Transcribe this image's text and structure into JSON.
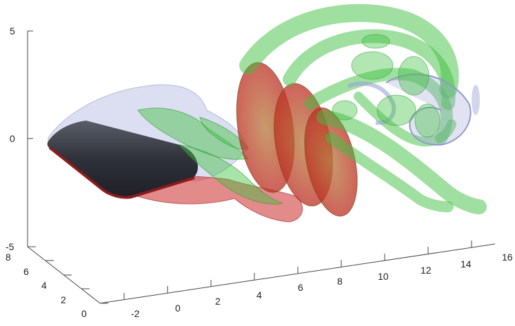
{
  "scene": {
    "description_type": "3d-vortex-isosurface-render",
    "background_color": "#ffffff",
    "colors": {
      "body": "#3b3e47",
      "red_isosurface": "#cc2a2a",
      "green_isosurface": "#3fc03f",
      "blue_isosurface": "#9aa3d6",
      "axis": "#444444"
    }
  },
  "axes": {
    "z": {
      "ticks": [
        "5",
        "0",
        "-5"
      ]
    },
    "y": {
      "ticks": [
        "8",
        "6",
        "4",
        "2",
        "0"
      ]
    },
    "x": {
      "ticks": [
        "-2",
        "0",
        "2",
        "4",
        "6",
        "8",
        "10",
        "12",
        "14",
        "16"
      ]
    }
  }
}
